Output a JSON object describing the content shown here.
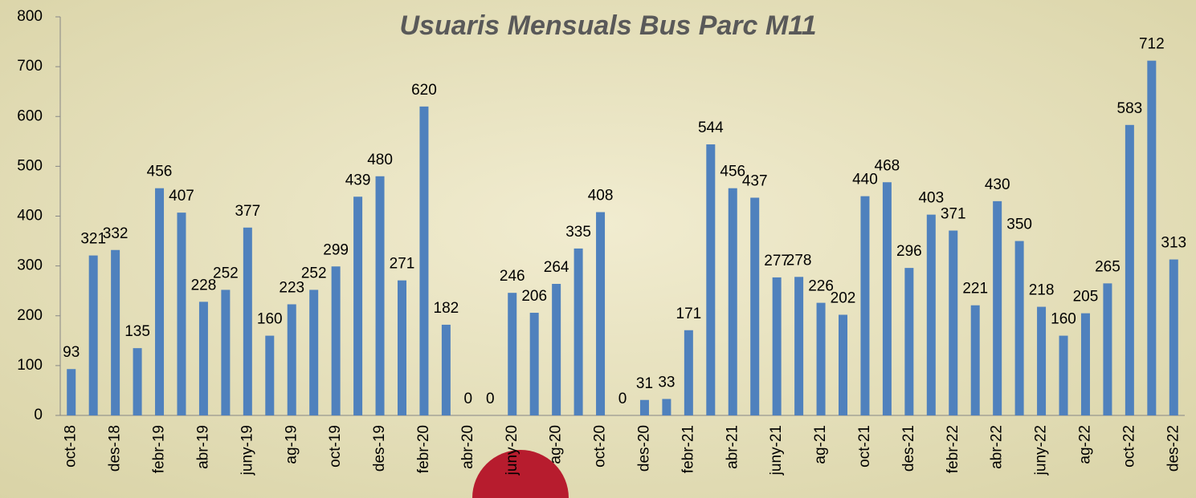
{
  "chart_data": {
    "type": "bar",
    "title": "Usuaris Mensuals Bus Parc M11",
    "categories": [
      "oct-18",
      null,
      "des-18",
      null,
      "febr-19",
      null,
      "abr-19",
      null,
      "juny-19",
      null,
      "ag-19",
      null,
      "oct-19",
      null,
      "des-19",
      null,
      "febr-20",
      null,
      "abr-20",
      null,
      "juny-20",
      null,
      "ag-20",
      null,
      "oct-20",
      null,
      "des-20",
      null,
      "febr-21",
      null,
      "abr-21",
      null,
      "juny-21",
      null,
      "ag-21",
      null,
      "oct-21",
      null,
      "des-21",
      null,
      "febr-22",
      null,
      "abr-22",
      null,
      "juny-22",
      null,
      "ag-22",
      null,
      "oct-22",
      null,
      "des-22"
    ],
    "values": [
      93,
      321,
      332,
      135,
      456,
      407,
      228,
      252,
      377,
      160,
      223,
      252,
      299,
      439,
      480,
      271,
      620,
      182,
      0,
      0,
      246,
      206,
      264,
      335,
      408,
      0,
      31,
      33,
      171,
      544,
      456,
      437,
      277,
      278,
      226,
      202,
      440,
      468,
      296,
      403,
      371,
      221,
      430,
      350,
      218,
      160,
      205,
      265,
      583,
      712,
      313
    ],
    "color": "#4f81bd",
    "ylim": [
      0,
      800
    ],
    "yticks": [
      0,
      100,
      200,
      300,
      400,
      500,
      600,
      700,
      800
    ],
    "grid": false
  }
}
